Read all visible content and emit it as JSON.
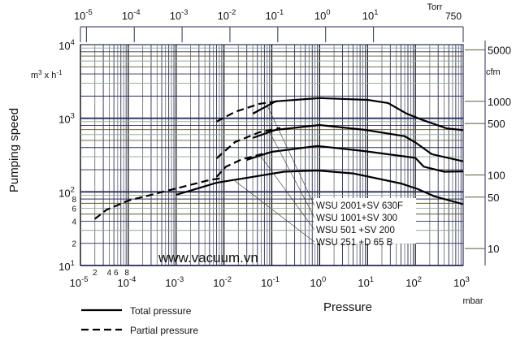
{
  "chart_data": {
    "type": "line",
    "title": "",
    "xlabel": "Pressure",
    "xunit": "mbar",
    "ylabel": "Pumping speed",
    "yunit_main": "m3 x h-1",
    "yunit_right": "cfm",
    "xscale": "log",
    "yscale": "log",
    "xlim": [
      1e-05,
      1000
    ],
    "ylim": [
      10,
      10000
    ],
    "x_ticks": [
      "10-5",
      "10-4",
      "10-3",
      "10-2",
      "10-1",
      "100",
      "101",
      "102",
      "103"
    ],
    "x_minor_labels": [
      "2",
      "4",
      "6",
      "8"
    ],
    "y_ticks": [
      "101",
      "102",
      "103",
      "104"
    ],
    "y_minor_labels": [
      "8",
      "6",
      "4",
      "2"
    ],
    "top_axis": {
      "unit": "Torr",
      "ticks": [
        "10-5",
        "10-4",
        "10-3",
        "10-2",
        "10-1",
        "100",
        "101"
      ],
      "end_label": "750"
    },
    "right_axis": {
      "unit": "cfm",
      "ticks": [
        5000,
        1000,
        500,
        100,
        50,
        10
      ]
    },
    "grid": true,
    "legend": [
      {
        "label": "Total pressure",
        "style": "solid"
      },
      {
        "label": "Partial pressure",
        "style": "dashed"
      }
    ],
    "series": [
      {
        "name": "WSU 2001+SV 630F",
        "total": [
          [
            0.04,
            1155
          ],
          [
            0.12,
            1700
          ],
          [
            1,
            1880
          ],
          [
            10,
            1780
          ],
          [
            27,
            1610
          ],
          [
            65,
            1160
          ],
          [
            140,
            950
          ],
          [
            450,
            730
          ],
          [
            1000,
            690
          ]
        ],
        "partial": [
          [
            0.007,
            900
          ],
          [
            0.017,
            1220
          ],
          [
            0.055,
            1570
          ],
          [
            0.13,
            1700
          ]
        ]
      },
      {
        "name": "WSU 1001+SV 300",
        "total": [
          [
            0.04,
            540
          ],
          [
            0.12,
            695
          ],
          [
            1,
            810
          ],
          [
            9,
            695
          ],
          [
            60,
            570
          ],
          [
            100,
            470
          ],
          [
            220,
            325
          ],
          [
            1000,
            260
          ]
        ],
        "partial": [
          [
            0.007,
            286
          ],
          [
            0.017,
            475
          ],
          [
            0.055,
            645
          ],
          [
            0.15,
            740
          ]
        ]
      },
      {
        "name": "WSU 501  +SV 200",
        "total": [
          [
            0.03,
            272
          ],
          [
            0.1,
            350
          ],
          [
            0.9,
            420
          ],
          [
            8,
            360
          ],
          [
            100,
            290
          ],
          [
            150,
            220
          ],
          [
            400,
            188
          ],
          [
            1000,
            190
          ]
        ],
        "partial": [
          [
            0.007,
            160
          ],
          [
            0.011,
            220
          ],
          [
            0.024,
            278
          ],
          [
            0.08,
            340
          ]
        ]
      },
      {
        "name": "WSU 251  +D 65 B",
        "total": [
          [
            0.001,
            91
          ],
          [
            0.007,
            133
          ],
          [
            0.03,
            155
          ],
          [
            0.18,
            188
          ],
          [
            0.9,
            195
          ],
          [
            5,
            178
          ],
          [
            50,
            130
          ],
          [
            110,
            110
          ],
          [
            250,
            87
          ],
          [
            1000,
            68
          ]
        ],
        "partial": [
          [
            2e-05,
            43
          ],
          [
            3.5e-05,
            57
          ],
          [
            0.0001,
            76
          ],
          [
            0.00075,
            106
          ],
          [
            0.005,
            145
          ],
          [
            0.01,
            155
          ]
        ]
      }
    ],
    "watermark": "www.vacuum.vn"
  },
  "colors": {
    "grid_dark": "#2a2f5a",
    "grid_olive": "#5a5a30",
    "grid_green": "#8aa890",
    "curve": "#000000"
  }
}
